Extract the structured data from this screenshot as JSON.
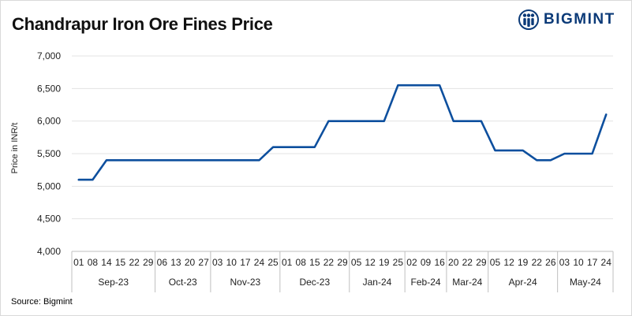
{
  "title": "Chandrapur Iron Ore Fines Price",
  "brand": {
    "name": "BIGMINT",
    "icon": "bigmint-logo-icon",
    "color": "#0b3a78"
  },
  "source": "Source: Bigmint",
  "chart_data": {
    "type": "line",
    "ylabel": "Price in INR/t",
    "xlabel": "",
    "ylim": [
      4000,
      7000
    ],
    "yticks": [
      4000,
      4500,
      5000,
      5500,
      6000,
      6500,
      7000
    ],
    "ytick_labels": [
      "4,000",
      "4,500",
      "5,000",
      "5,500",
      "6,000",
      "6,500",
      "7,000"
    ],
    "grid": "horizontal",
    "line_color": "#0d4f9e",
    "x": [
      "01",
      "08",
      "14",
      "15",
      "22",
      "29",
      "06",
      "13",
      "20",
      "27",
      "03",
      "10",
      "17",
      "24",
      "25",
      "01",
      "08",
      "15",
      "22",
      "29",
      "05",
      "12",
      "19",
      "25",
      "02",
      "09",
      "16",
      "20",
      "22",
      "29",
      "05",
      "12",
      "19",
      "22",
      "26",
      "03",
      "10",
      "17",
      "24"
    ],
    "months": [
      {
        "label": "Sep-23",
        "count": 6
      },
      {
        "label": "Oct-23",
        "count": 4
      },
      {
        "label": "Nov-23",
        "count": 5
      },
      {
        "label": "Dec-23",
        "count": 5
      },
      {
        "label": "Jan-24",
        "count": 4
      },
      {
        "label": "Feb-24",
        "count": 3
      },
      {
        "label": "Mar-24",
        "count": 3
      },
      {
        "label": "Apr-24",
        "count": 5
      },
      {
        "label": "May-24",
        "count": 4
      }
    ],
    "series": [
      {
        "values": [
          5100,
          5100,
          5400,
          5400,
          5400,
          5400,
          5400,
          5400,
          5400,
          5400,
          5400,
          5400,
          5400,
          5400,
          5600,
          5600,
          5600,
          5600,
          6000,
          6000,
          6000,
          6000,
          6000,
          6550,
          6550,
          6550,
          6550,
          6000,
          6000,
          6000,
          5550,
          5550,
          5550,
          5400,
          5400,
          5500,
          5500,
          5500,
          6100
        ]
      }
    ]
  }
}
